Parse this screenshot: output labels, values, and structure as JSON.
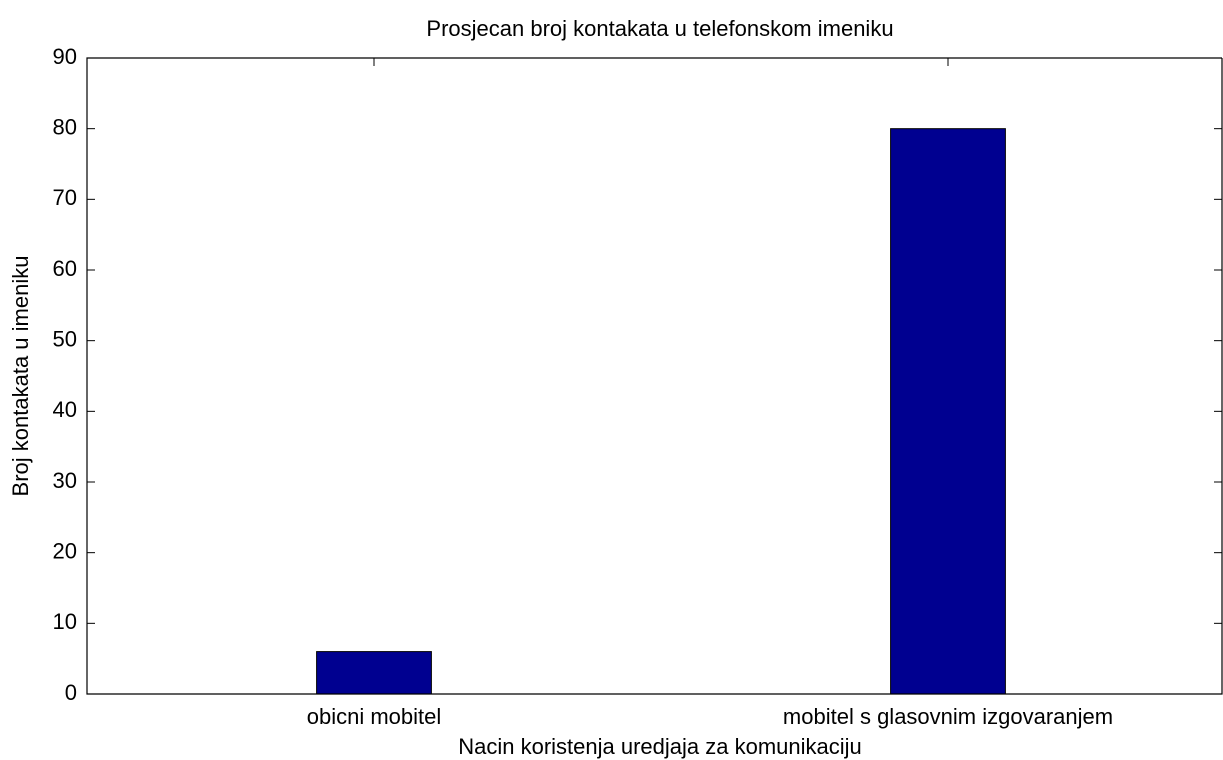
{
  "chart_data": {
    "type": "bar",
    "title": "Prosjecan broj kontakata u telefonskom imeniku",
    "xlabel": "Nacin koristenja uredjaja za komunikaciju",
    "ylabel": "Broj kontakata u imeniku",
    "categories": [
      "obicni mobitel",
      "mobitel s glasovnim izgovaranjem"
    ],
    "values": [
      6,
      80
    ],
    "color": "#000090",
    "ylim": [
      0,
      90
    ],
    "yticks": [
      0,
      10,
      20,
      30,
      40,
      50,
      60,
      70,
      80,
      90
    ],
    "grid": false
  }
}
